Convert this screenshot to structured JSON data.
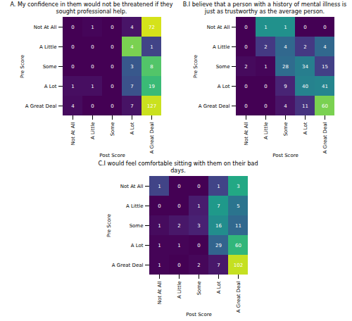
{
  "chart_data": [
    {
      "type": "heatmap",
      "title": "A. My confidence in them would not be threatened if they sought professional help.",
      "xlabel": "Post Score",
      "ylabel": "Pre Score",
      "color": "viridis",
      "data_labels": true,
      "x_categories": [
        "Not At All",
        "A Little",
        "Some",
        "A Lot",
        "A Great Deal"
      ],
      "y_categories": [
        "Not At All",
        "A Little",
        "Some",
        "A Lot",
        "A Great Deal"
      ],
      "cells": [
        [
          0,
          1,
          0,
          4,
          72
        ],
        [
          0,
          0,
          0,
          4,
          1
        ],
        [
          0,
          0,
          0,
          3,
          8
        ],
        [
          1,
          1,
          0,
          7,
          19
        ],
        [
          4,
          0,
          0,
          7,
          127
        ]
      ]
    },
    {
      "type": "heatmap",
      "title": "B.I believe that a person with a history of mental illness is just as trustworthy as the average person.",
      "xlabel": "Post Score",
      "ylabel": "Pre Score",
      "color": "viridis",
      "data_labels": true,
      "x_categories": [
        "Not At All",
        "A Little",
        "Some",
        "A Lot",
        "A Great Deal"
      ],
      "y_categories": [
        "Not At All",
        "A Little",
        "Some",
        "A Lot",
        "A Great Deal"
      ],
      "cells": [
        [
          0,
          1,
          1,
          0,
          0
        ],
        [
          0,
          2,
          4,
          2,
          4
        ],
        [
          2,
          1,
          28,
          34,
          15
        ],
        [
          0,
          0,
          9,
          40,
          41
        ],
        [
          0,
          0,
          4,
          11,
          60
        ]
      ]
    },
    {
      "type": "heatmap",
      "title": "C.I would feel comfortable sitting with them on their bad days.",
      "xlabel": "Post Score",
      "ylabel": "Pre Score",
      "color": "viridis",
      "data_labels": true,
      "x_categories": [
        "Not At All",
        "A Little",
        "Some",
        "A Lot",
        "A Great Deal"
      ],
      "y_categories": [
        "Not At All",
        "A Little",
        "Some",
        "A Lot",
        "A Great Deal"
      ],
      "cells": [
        [
          1,
          0,
          0,
          1,
          3
        ],
        [
          0,
          0,
          1,
          7,
          5
        ],
        [
          1,
          2,
          3,
          16,
          11
        ],
        [
          1,
          1,
          0,
          29,
          60
        ],
        [
          1,
          0,
          2,
          7,
          102
        ]
      ]
    }
  ]
}
